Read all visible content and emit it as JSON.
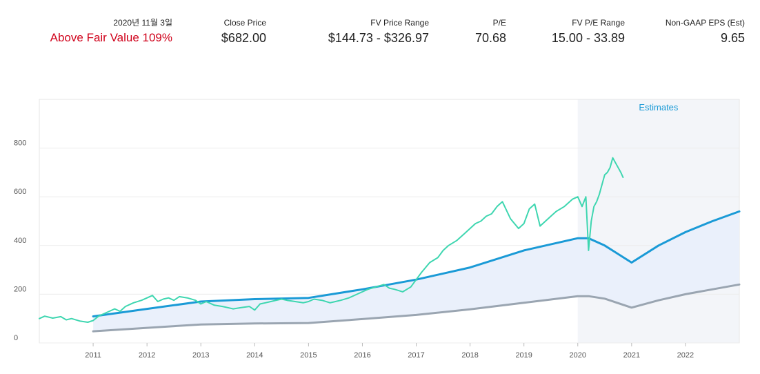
{
  "header": {
    "date": "2020년 11월 3일",
    "status": "Above Fair Value 109%",
    "close_price_label": "Close Price",
    "close_price": "$682.00",
    "fv_price_range_label": "FV Price Range",
    "fv_price_range": "$144.73 - $326.97",
    "pe_label": "P/E",
    "pe": "70.68",
    "fv_pe_range_label": "FV P/E Range",
    "fv_pe_range": "15.00 - 33.89",
    "eps_label": "Non-GAAP EPS (Est)",
    "eps": "9.65"
  },
  "colors": {
    "price": "#3ed6b0",
    "fv_upper": "#1a9ad6",
    "fv_lower": "#9aa5b1",
    "band_fill": "#eaf0fb",
    "estimates_bg": "#f3f5f9",
    "alert": "#d0021b"
  },
  "chart_data": {
    "type": "line",
    "x_unit": "year",
    "xlim": [
      2010,
      2023
    ],
    "ylim": [
      0,
      1000
    ],
    "x_ticks": [
      "2011",
      "2012",
      "2013",
      "2014",
      "2015",
      "2016",
      "2017",
      "2018",
      "2019",
      "2020",
      "2021",
      "2022"
    ],
    "y_ticks": [
      "0",
      "200",
      "400",
      "600",
      "800"
    ],
    "grid": true,
    "estimates_label": "Estimates",
    "estimates_start": 2020.0,
    "series": [
      {
        "key": "price",
        "x": [
          2010.0,
          2010.1,
          2010.25,
          2010.4,
          2010.5,
          2010.6,
          2010.75,
          2010.9,
          2011.0,
          2011.1,
          2011.25,
          2011.4,
          2011.5,
          2011.6,
          2011.75,
          2011.9,
          2012.0,
          2012.1,
          2012.2,
          2012.3,
          2012.4,
          2012.5,
          2012.6,
          2012.75,
          2012.9,
          2013.0,
          2013.1,
          2013.25,
          2013.4,
          2013.5,
          2013.6,
          2013.75,
          2013.9,
          2014.0,
          2014.1,
          2014.2,
          2014.3,
          2014.4,
          2014.5,
          2014.6,
          2014.75,
          2014.9,
          2015.0,
          2015.1,
          2015.25,
          2015.4,
          2015.5,
          2015.6,
          2015.75,
          2015.9,
          2016.0,
          2016.1,
          2016.25,
          2016.4,
          2016.5,
          2016.6,
          2016.75,
          2016.9,
          2017.0,
          2017.1,
          2017.25,
          2017.4,
          2017.5,
          2017.6,
          2017.75,
          2017.9,
          2018.0,
          2018.1,
          2018.2,
          2018.3,
          2018.4,
          2018.5,
          2018.6,
          2018.75,
          2018.9,
          2019.0,
          2019.1,
          2019.2,
          2019.3,
          2019.4,
          2019.5,
          2019.6,
          2019.75,
          2019.9,
          2020.0,
          2020.08,
          2020.15,
          2020.2,
          2020.25,
          2020.3,
          2020.35,
          2020.4,
          2020.45,
          2020.5,
          2020.55,
          2020.6,
          2020.65,
          2020.7,
          2020.75,
          2020.8,
          2020.84
        ],
        "y": [
          100,
          110,
          102,
          108,
          95,
          100,
          90,
          85,
          92,
          110,
          125,
          140,
          130,
          150,
          165,
          175,
          185,
          195,
          170,
          180,
          185,
          175,
          190,
          185,
          175,
          160,
          170,
          155,
          150,
          145,
          140,
          145,
          150,
          135,
          160,
          165,
          170,
          175,
          180,
          175,
          170,
          165,
          170,
          180,
          175,
          165,
          170,
          175,
          185,
          200,
          210,
          220,
          230,
          240,
          225,
          220,
          210,
          230,
          260,
          290,
          330,
          350,
          380,
          400,
          420,
          450,
          470,
          490,
          500,
          520,
          530,
          560,
          580,
          510,
          470,
          490,
          550,
          570,
          480,
          500,
          520,
          540,
          560,
          590,
          600,
          560,
          600,
          380,
          500,
          560,
          580,
          610,
          650,
          690,
          700,
          720,
          760,
          740,
          720,
          700,
          680
        ]
      },
      {
        "key": "fv_upper",
        "x": [
          2011,
          2012,
          2013,
          2014,
          2015,
          2016,
          2017,
          2018,
          2019,
          2020,
          2020.2,
          2020.5,
          2021,
          2021.5,
          2022,
          2022.5,
          2023
        ],
        "y": [
          109,
          140,
          170,
          180,
          185,
          220,
          260,
          310,
          380,
          430,
          430,
          400,
          330,
          400,
          455,
          500,
          540
        ]
      },
      {
        "key": "fv_lower",
        "x": [
          2011,
          2012,
          2013,
          2014,
          2015,
          2016,
          2017,
          2018,
          2019,
          2020,
          2020.2,
          2020.5,
          2021,
          2021.5,
          2022,
          2022.5,
          2023
        ],
        "y": [
          48,
          62,
          76,
          80,
          82,
          98,
          115,
          138,
          165,
          192,
          192,
          182,
          145,
          175,
          200,
          220,
          240
        ]
      }
    ]
  }
}
